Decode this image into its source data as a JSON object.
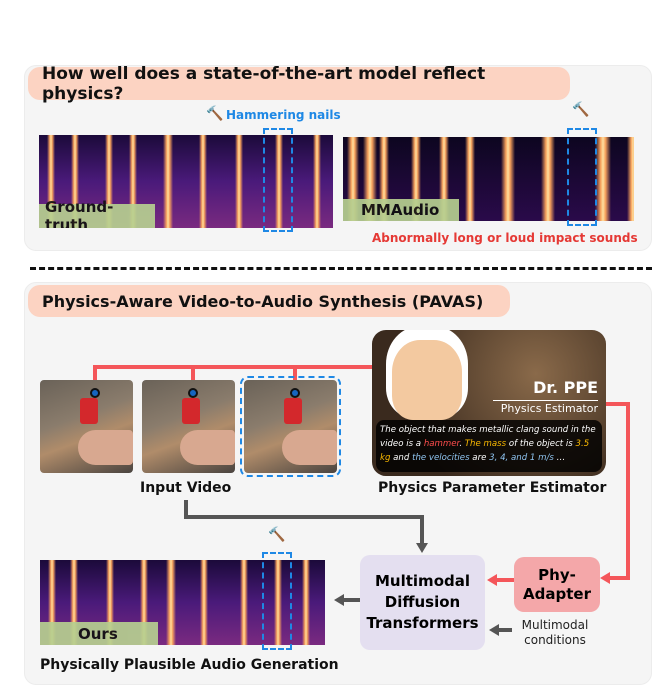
{
  "top": {
    "title": "How well does a state-of-the-art model reflect physics?",
    "annotation": "Hammering nails",
    "gt_label": "Ground-truth",
    "baseline_label": "MMAudio",
    "error_note": "Abnormally long or loud impact sounds"
  },
  "bottom": {
    "title": "Physics-Aware Video-to-Audio Synthesis (PAVAS)",
    "input_caption": "Input Video",
    "ppe": {
      "name": "Dr. PPE",
      "subtitle": "Physics Estimator",
      "text_1": "The object that makes metallic clang sound in the video is a ",
      "text_hammer": "hammer",
      "text_2": ". ",
      "text_mass": "The mass",
      "text_3": " of the object is ",
      "text_kg": "3.5 kg",
      "text_4": " and ",
      "text_vel": "the velocities",
      "text_5": " are ",
      "text_vals": "3, 4, and 1 m/s",
      "text_6": " …",
      "caption": "Physics Parameter Estimator"
    },
    "adapter": "Phy-Adapter",
    "mdt": "Multimodal Diffusion Transformers",
    "conditions": "Multimodal conditions",
    "ours_label": "Ours",
    "output_caption": "Physically Plausible Audio Generation"
  },
  "colors": {
    "pill": "#fcd3c2",
    "accent_blue": "#1e88e5",
    "error_red": "#e53935",
    "arrow_red": "#f4565a",
    "adapter": "#f4a7a9",
    "mdt": "#e4dff0",
    "label_green": "#b6cf90"
  },
  "icons": [
    "hammer-icon"
  ]
}
